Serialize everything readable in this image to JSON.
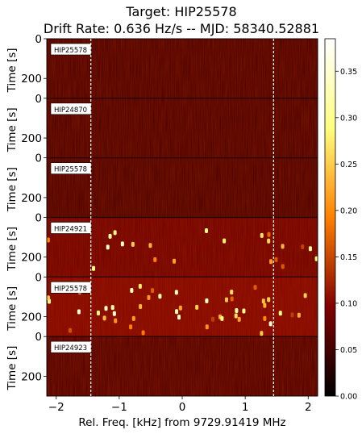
{
  "chart_data": {
    "type": "heatmap",
    "title_line1": "Target: HIP25578",
    "title_line2": "Drift Rate: 0.636 Hz/s -- MJD: 58340.52881",
    "xlabel": "Rel. Freq. [kHz] from 9729.91419 MHz",
    "ylabel": "Time [s]",
    "xlim": [
      -2.15,
      2.15
    ],
    "x_ticks": [
      -2,
      -1,
      0,
      1,
      2
    ],
    "x_tick_labels": [
      "−2",
      "−1",
      "0",
      "1",
      "2"
    ],
    "panel_time_range": [
      0,
      300
    ],
    "y_ticks": [
      0,
      200
    ],
    "y_tick_labels": [
      "0",
      "200"
    ],
    "marker_lines_khz": [
      -1.45,
      1.45
    ],
    "colorbar": {
      "colormap": "afmhot",
      "range": [
        0.0,
        0.385
      ],
      "ticks": [
        0.0,
        0.05,
        0.1,
        0.15,
        0.2,
        0.25,
        0.3,
        0.35
      ],
      "tick_labels": [
        "0.00",
        "0.05",
        "0.10",
        "0.15",
        "0.20",
        "0.25",
        "0.30",
        "0.35"
      ]
    },
    "panels": [
      {
        "target": "HIP25578",
        "base_level": 0.055
      },
      {
        "target": "HIP24870",
        "base_level": 0.055
      },
      {
        "target": "HIP25578",
        "base_level": 0.055
      },
      {
        "target": "HIP24921",
        "base_level": 0.085
      },
      {
        "target": "HIP25578",
        "base_level": 0.1
      },
      {
        "target": "HIP24923",
        "base_level": 0.06
      }
    ]
  }
}
